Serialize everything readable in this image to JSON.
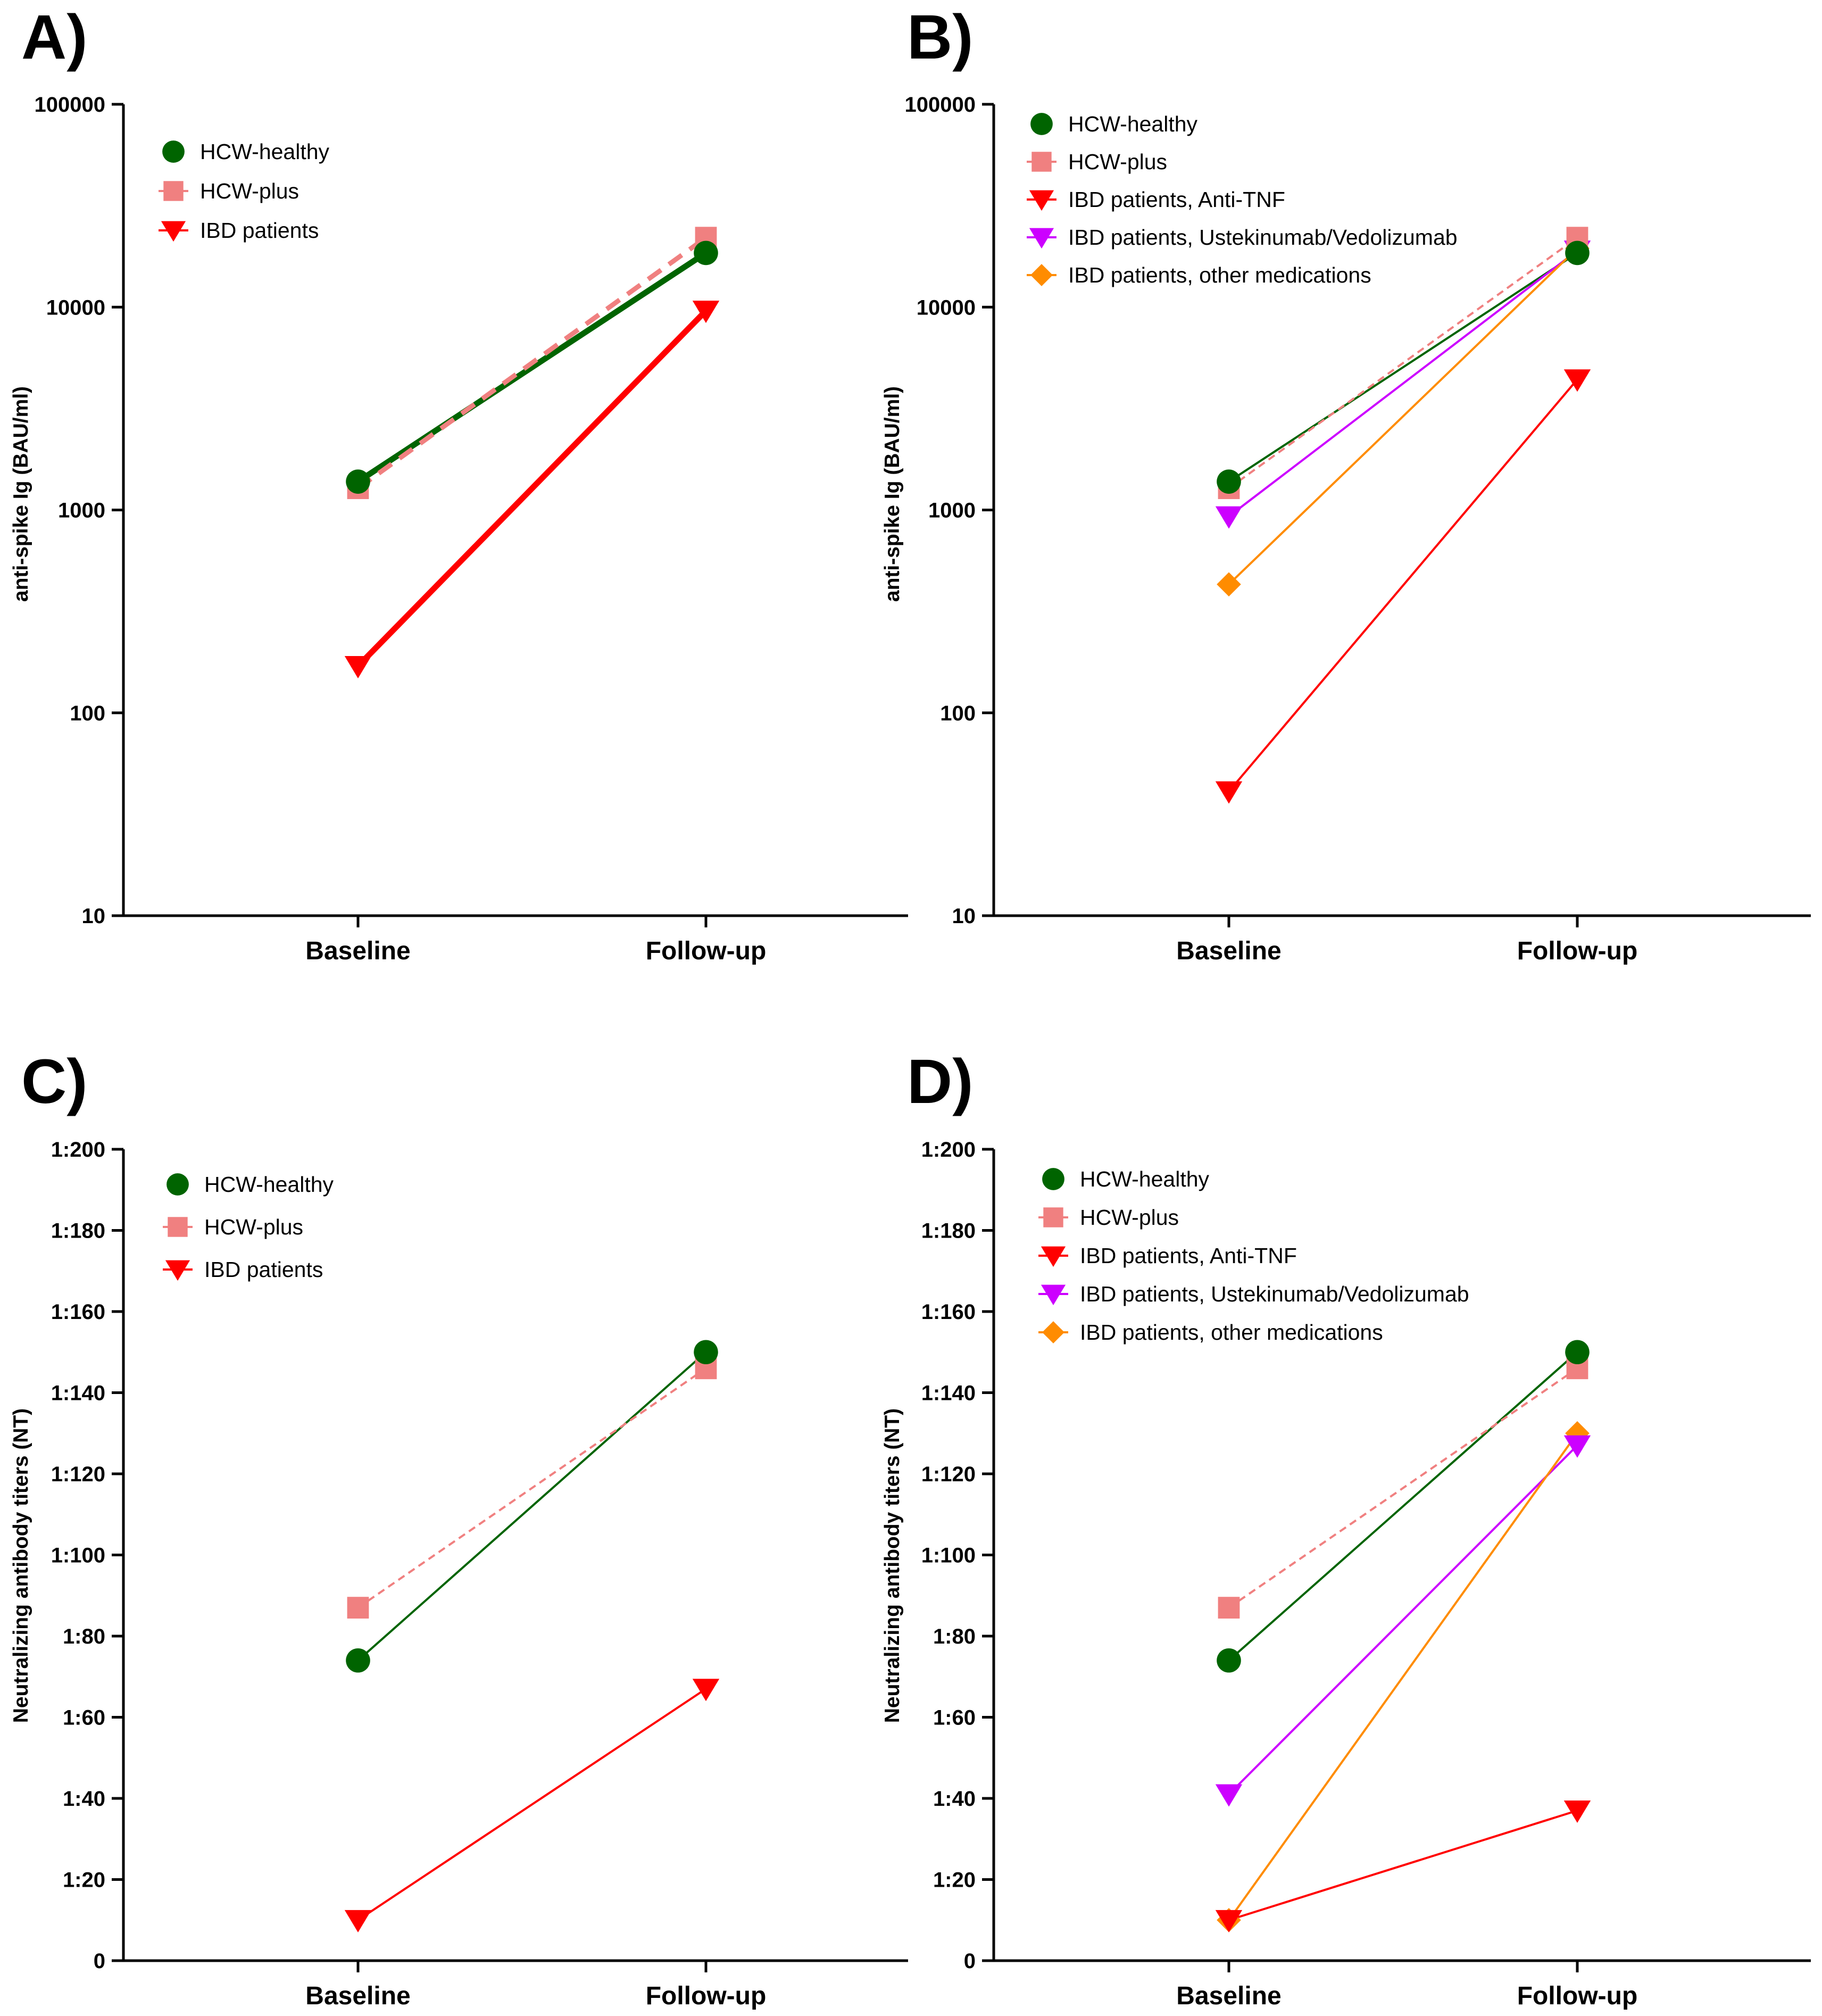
{
  "chart_data": [
    {
      "id": "A",
      "panel_label": "A)",
      "type": "line",
      "scale": "log",
      "ylabel": "anti-spike Ig (BAU/ml)",
      "ylim": [
        10,
        100000
      ],
      "yticks": [
        10,
        100,
        1000,
        10000,
        100000
      ],
      "ytick_labels": [
        "10",
        "100",
        "1000",
        "10000",
        "100000"
      ],
      "categories": [
        "Baseline",
        "Follow-up"
      ],
      "legend_position": "top-left",
      "series": [
        {
          "name": "HCW-healthy",
          "values": [
            1380,
            18500
          ],
          "color": "#006400",
          "marker": "circle",
          "line": "solid",
          "width": "thick"
        },
        {
          "name": "HCW-plus",
          "values": [
            1280,
            22000
          ],
          "color": "#F08080",
          "marker": "square",
          "line": "dashed",
          "width": "thick"
        },
        {
          "name": "IBD patients",
          "values": [
            170,
            9600
          ],
          "color": "#FF0000",
          "marker": "triangle-down",
          "line": "solid",
          "width": "thick"
        }
      ]
    },
    {
      "id": "B",
      "panel_label": "B)",
      "type": "line",
      "scale": "log",
      "ylabel": "anti-spike Ig (BAU/ml)",
      "ylim": [
        10,
        100000
      ],
      "yticks": [
        10,
        100,
        1000,
        10000,
        100000
      ],
      "ytick_labels": [
        "10",
        "100",
        "1000",
        "10000",
        "100000"
      ],
      "categories": [
        "Baseline",
        "Follow-up"
      ],
      "legend_position": "top-left",
      "series": [
        {
          "name": "HCW-healthy",
          "values": [
            1380,
            18500
          ],
          "color": "#006400",
          "marker": "circle",
          "line": "solid",
          "width": "thin"
        },
        {
          "name": "HCW-plus",
          "values": [
            1280,
            22000
          ],
          "color": "#F08080",
          "marker": "square",
          "line": "dashed",
          "width": "thin"
        },
        {
          "name": "IBD patients, Anti-TNF",
          "values": [
            41,
            4400
          ],
          "color": "#FF0000",
          "marker": "triangle-down",
          "line": "solid",
          "width": "thin"
        },
        {
          "name": "IBD patients, Ustekinumab/Vedolizumab",
          "values": [
            930,
            19000
          ],
          "color": "#CC00FF",
          "marker": "triangle-down",
          "line": "solid",
          "width": "thin"
        },
        {
          "name": "IBD patients, other medications",
          "values": [
            430,
            19500
          ],
          "color": "#FF8C00",
          "marker": "diamond",
          "line": "solid",
          "width": "thin"
        }
      ]
    },
    {
      "id": "C",
      "panel_label": "C)",
      "type": "line",
      "scale": "linear",
      "ylabel": "Neutralizing antibody titers (NT)",
      "ylim": [
        0,
        200
      ],
      "yticks": [
        0,
        20,
        40,
        60,
        80,
        100,
        120,
        140,
        160,
        180,
        200
      ],
      "ytick_labels": [
        "0",
        "1:20",
        "1:40",
        "1:60",
        "1:80",
        "1:100",
        "1:120",
        "1:140",
        "1:160",
        "1:180",
        "1:200"
      ],
      "categories": [
        "Baseline",
        "Follow-up"
      ],
      "legend_position": "top-left",
      "series": [
        {
          "name": "HCW-healthy",
          "values": [
            74,
            150
          ],
          "color": "#006400",
          "marker": "circle",
          "line": "solid",
          "width": "thin"
        },
        {
          "name": "HCW-plus",
          "values": [
            87,
            146
          ],
          "color": "#F08080",
          "marker": "square",
          "line": "dashed",
          "width": "thin"
        },
        {
          "name": "IBD patients",
          "values": [
            10,
            67
          ],
          "color": "#FF0000",
          "marker": "triangle-down",
          "line": "solid",
          "width": "thin"
        }
      ]
    },
    {
      "id": "D",
      "panel_label": "D)",
      "type": "line",
      "scale": "linear",
      "ylabel": "Neutralizing antibody titers (NT)",
      "ylim": [
        0,
        200
      ],
      "yticks": [
        0,
        20,
        40,
        60,
        80,
        100,
        120,
        140,
        160,
        180,
        200
      ],
      "ytick_labels": [
        "0",
        "1:20",
        "1:40",
        "1:60",
        "1:80",
        "1:100",
        "1:120",
        "1:140",
        "1:160",
        "1:180",
        "1:200"
      ],
      "categories": [
        "Baseline",
        "Follow-up"
      ],
      "legend_position": "top-left",
      "series": [
        {
          "name": "HCW-healthy",
          "values": [
            74,
            150
          ],
          "color": "#006400",
          "marker": "circle",
          "line": "solid",
          "width": "thin"
        },
        {
          "name": "HCW-plus",
          "values": [
            87,
            146
          ],
          "color": "#F08080",
          "marker": "square",
          "line": "dashed",
          "width": "thin"
        },
        {
          "name": "IBD patients, Anti-TNF",
          "values": [
            10,
            37
          ],
          "color": "#FF0000",
          "marker": "triangle-down",
          "line": "solid",
          "width": "thin"
        },
        {
          "name": "IBD patients, Ustekinumab/Vedolizumab",
          "values": [
            41,
            127
          ],
          "color": "#CC00FF",
          "marker": "triangle-down",
          "line": "solid",
          "width": "thin"
        },
        {
          "name": "IBD patients, other medications",
          "values": [
            10,
            130
          ],
          "color": "#FF8C00",
          "marker": "diamond",
          "line": "solid",
          "width": "thin"
        }
      ]
    }
  ]
}
